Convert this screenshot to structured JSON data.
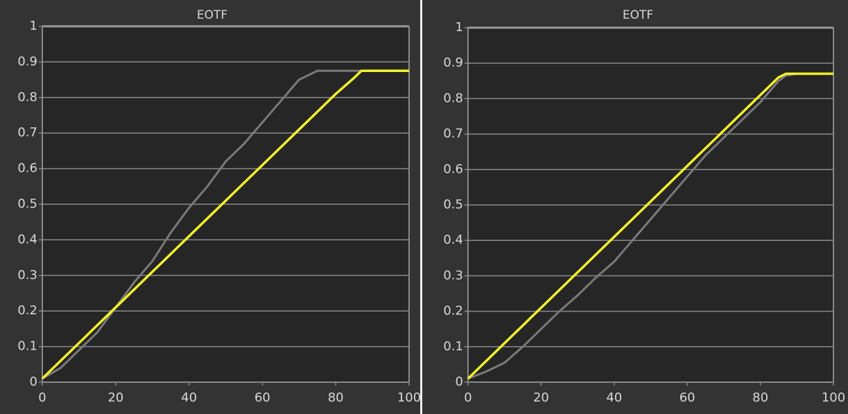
{
  "chart_data": [
    {
      "type": "line",
      "title": "EOTF",
      "x": [
        0,
        5,
        10,
        15,
        20,
        25,
        30,
        35,
        40,
        45,
        50,
        55,
        60,
        65,
        70,
        75,
        80,
        85,
        87,
        90,
        95,
        100
      ],
      "series": [
        {
          "color": "#7a7a7a",
          "values": [
            0.01,
            0.04,
            0.09,
            0.14,
            0.21,
            0.28,
            0.34,
            0.42,
            0.49,
            0.55,
            0.62,
            0.67,
            0.73,
            0.79,
            0.85,
            0.875,
            0.875,
            0.875,
            0.875,
            0.875,
            0.875,
            0.875
          ]
        },
        {
          "color": "#f2f22e",
          "values": [
            0.01,
            0.06,
            0.11,
            0.16,
            0.21,
            0.26,
            0.31,
            0.36,
            0.41,
            0.46,
            0.51,
            0.56,
            0.61,
            0.66,
            0.71,
            0.76,
            0.81,
            0.855,
            0.875,
            0.875,
            0.875,
            0.875
          ]
        }
      ],
      "xlim": [
        0,
        100
      ],
      "xticks": [
        0,
        20,
        40,
        60,
        80,
        100
      ],
      "ylim": [
        0,
        1
      ],
      "yticks": [
        0,
        0.1,
        0.2,
        0.3,
        0.4,
        0.5,
        0.6,
        0.7,
        0.8,
        0.9,
        1
      ],
      "grid": true
    },
    {
      "type": "line",
      "title": "EOTF",
      "x": [
        0,
        5,
        10,
        15,
        20,
        25,
        30,
        35,
        40,
        45,
        50,
        55,
        60,
        65,
        70,
        75,
        80,
        85,
        87,
        90,
        95,
        100
      ],
      "series": [
        {
          "color": "#7a7a7a",
          "values": [
            0.01,
            0.03,
            0.055,
            0.1,
            0.15,
            0.2,
            0.245,
            0.295,
            0.34,
            0.4,
            0.46,
            0.52,
            0.58,
            0.64,
            0.69,
            0.74,
            0.79,
            0.85,
            0.865,
            0.87,
            0.87,
            0.87
          ]
        },
        {
          "color": "#f2f22e",
          "values": [
            0.01,
            0.06,
            0.11,
            0.16,
            0.21,
            0.26,
            0.31,
            0.36,
            0.41,
            0.46,
            0.51,
            0.56,
            0.61,
            0.66,
            0.71,
            0.76,
            0.81,
            0.86,
            0.87,
            0.87,
            0.87,
            0.87
          ]
        }
      ],
      "xlim": [
        0,
        100
      ],
      "xticks": [
        0,
        20,
        40,
        60,
        80,
        100
      ],
      "ylim": [
        0,
        1
      ],
      "yticks": [
        0,
        0.1,
        0.2,
        0.3,
        0.4,
        0.5,
        0.6,
        0.7,
        0.8,
        0.9,
        1
      ],
      "grid": true
    }
  ]
}
